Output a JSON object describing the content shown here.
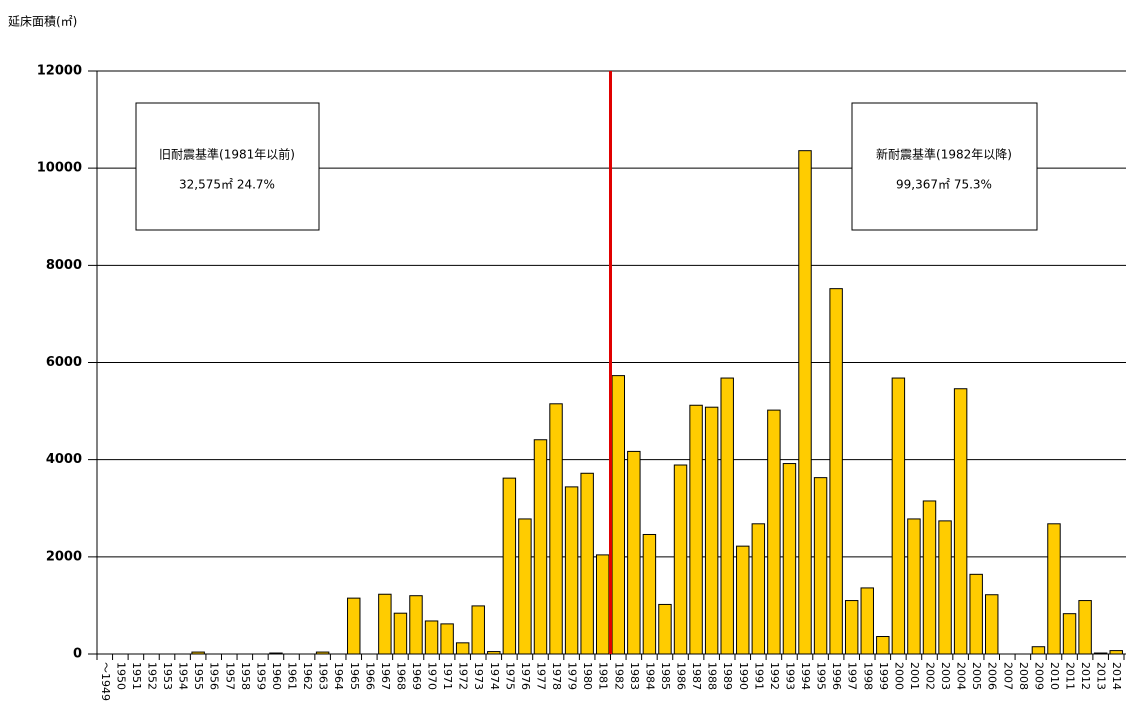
{
  "chart_data": {
    "type": "bar",
    "y_label": "延床面積(㎡)",
    "categories": [
      "～1949",
      "1950",
      "1951",
      "1952",
      "1953",
      "1954",
      "1955",
      "1956",
      "1957",
      "1958",
      "1959",
      "1960",
      "1961",
      "1962",
      "1963",
      "1964",
      "1965",
      "1966",
      "1967",
      "1968",
      "1969",
      "1970",
      "1971",
      "1972",
      "1973",
      "1974",
      "1975",
      "1976",
      "1977",
      "1978",
      "1979",
      "1980",
      "1981",
      "1982",
      "1983",
      "1984",
      "1985",
      "1986",
      "1987",
      "1988",
      "1989",
      "1990",
      "1991",
      "1992",
      "1993",
      "1994",
      "1995",
      "1996",
      "1997",
      "1998",
      "1999",
      "2000",
      "2001",
      "2002",
      "2003",
      "2004",
      "2005",
      "2006",
      "2007",
      "2008",
      "2009",
      "2010",
      "2011",
      "2012",
      "2013",
      "2014"
    ],
    "values": [
      0,
      0,
      0,
      0,
      0,
      0,
      40,
      0,
      0,
      0,
      0,
      20,
      0,
      0,
      40,
      0,
      1150,
      0,
      1230,
      840,
      1200,
      680,
      620,
      230,
      990,
      50,
      3620,
      2780,
      4410,
      5150,
      3440,
      3720,
      2040,
      5730,
      4170,
      2460,
      1020,
      3890,
      5120,
      5080,
      5680,
      2220,
      2680,
      5020,
      3920,
      10360,
      3630,
      7520,
      1100,
      1360,
      360,
      5680,
      2780,
      3150,
      2740,
      5460,
      1640,
      1220,
      0,
      0,
      150,
      2680,
      830,
      1100,
      20,
      70
    ],
    "color": "#ffcc00",
    "ylim": [
      0,
      12000
    ],
    "yticks": [
      0,
      2000,
      4000,
      6000,
      8000,
      10000,
      12000
    ],
    "grid": true,
    "annotations": [
      {
        "title": "旧耐震基準(1981年以前)",
        "text": "32,575㎡ 24.7%"
      },
      {
        "title": "新耐震基準(1982年以降)",
        "text": "99,367㎡ 75.3%"
      }
    ]
  }
}
